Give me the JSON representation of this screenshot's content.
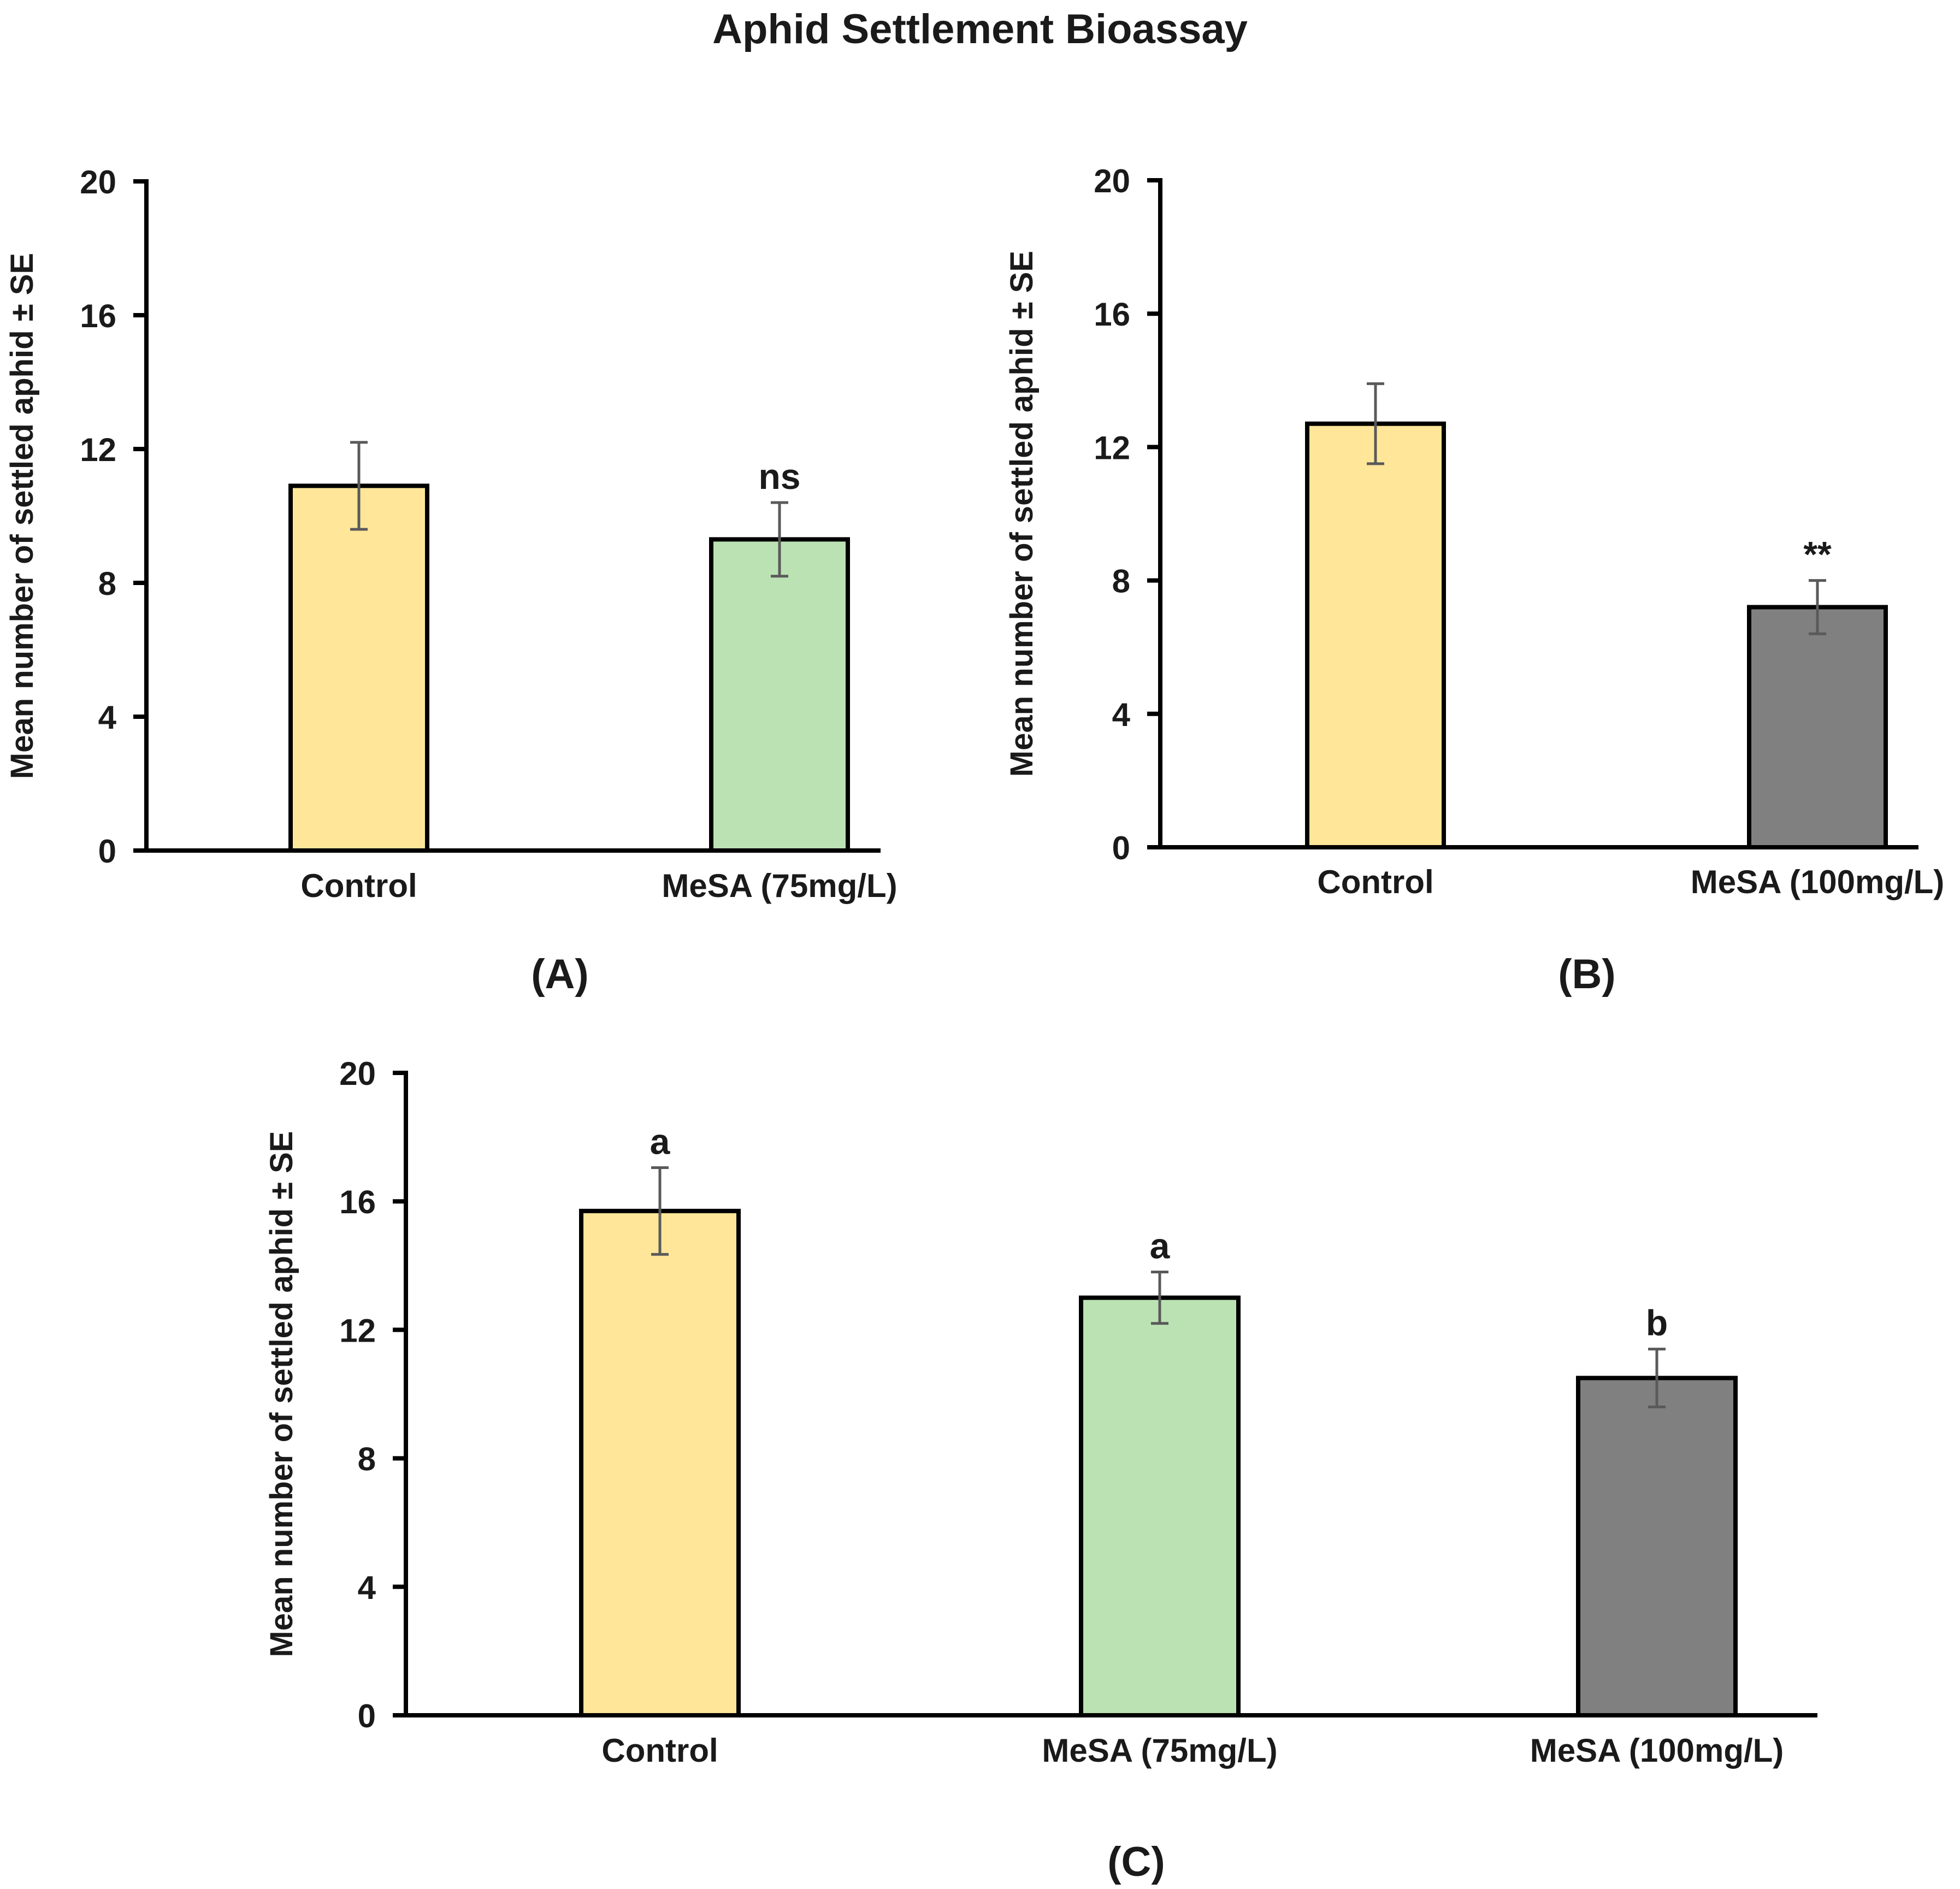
{
  "title": "Aphid Settlement Bioassay",
  "colors": {
    "control": "#FFE699",
    "mesa75": "#BBE2B3",
    "mesa100": "#808080",
    "stroke": "#000000",
    "error_bar": "#5a5a5a"
  },
  "chart_data": [
    {
      "type": "bar",
      "panel_label": "(A)",
      "ylabel": "Mean number of settled aphid ± SE",
      "ylim": [
        0,
        20
      ],
      "yticks": [
        0,
        4,
        8,
        12,
        16,
        20
      ],
      "categories": [
        "Control",
        "MeSA (75mg/L)"
      ],
      "values": [
        10.9,
        9.3
      ],
      "errors": [
        1.3,
        1.1
      ],
      "annotations": [
        "",
        "ns"
      ],
      "bar_colors": [
        "#FFE699",
        "#BBE2B3"
      ]
    },
    {
      "type": "bar",
      "panel_label": "(B)",
      "ylabel": "Mean number of settled aphid ± SE",
      "ylim": [
        0,
        20
      ],
      "yticks": [
        0,
        4,
        8,
        12,
        16,
        20
      ],
      "categories": [
        "Control",
        "MeSA (100mg/L)"
      ],
      "values": [
        12.7,
        7.2
      ],
      "errors": [
        1.2,
        0.8
      ],
      "annotations": [
        "",
        "**"
      ],
      "bar_colors": [
        "#FFE699",
        "#808080"
      ]
    },
    {
      "type": "bar",
      "panel_label": "(C)",
      "ylabel": "Mean number of settled aphid ± SE",
      "ylim": [
        0,
        20
      ],
      "yticks": [
        0,
        4,
        8,
        12,
        16,
        20
      ],
      "categories": [
        "Control",
        "MeSA (75mg/L)",
        "MeSA (100mg/L)"
      ],
      "values": [
        15.7,
        13.0,
        10.5
      ],
      "errors": [
        1.35,
        0.8,
        0.9
      ],
      "annotations": [
        "a",
        "a",
        "b"
      ],
      "bar_colors": [
        "#FFE699",
        "#BBE2B3",
        "#808080"
      ]
    }
  ]
}
